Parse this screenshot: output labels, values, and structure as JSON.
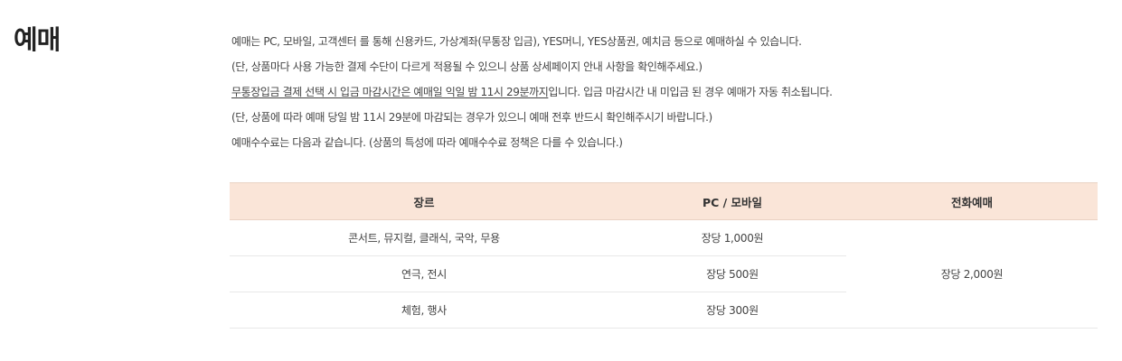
{
  "section": {
    "title": "예매"
  },
  "description": {
    "lines": [
      "예매는 PC, 모바일, 고객센터 를 통해 신용카드, 가상계좌(무통장 입금), YES머니, YES상품권, 예치금 등으로 예매하실 수 있습니다.",
      "(단, 상품마다 사용 가능한 결제 수단이 다르게 적용될 수 있으니 상품 상세페이지 안내 사항을 확인해주세요.)",
      "",
      "(단, 상품에 따라 예매 당일 밤 11시 29분에 마감되는 경우가 있으니 예매 전후 반드시 확인해주시기 바랍니다.)",
      "예매수수료는 다음과 같습니다. (상품의 특성에 따라 예매수수료 정책은 다를 수 있습니다.)"
    ],
    "notice_underlined": "무통장입금 결제 선택 시 입금 마감시간은 예매일 익일 밤 11시 29분까지",
    "notice_rest": "입니다. 입금 마감시간 내 미입금 된 경우 예매가 자동 취소됩니다."
  },
  "fee_table": {
    "headers": [
      "장르",
      "PC / 모바일",
      "전화예매"
    ],
    "rows": [
      {
        "genre": "콘서트, 뮤지컬, 클래식, 국악, 무용",
        "pc_mobile": "장당 1,000원"
      },
      {
        "genre": "연극, 전시",
        "pc_mobile": "장당 500원"
      },
      {
        "genre": "체험, 행사",
        "pc_mobile": "장당 300원"
      }
    ],
    "phone_fee": "장당 2,000원"
  },
  "colors": {
    "header_bg": "#fae5d8",
    "text": "#444444",
    "title": "#222222"
  }
}
